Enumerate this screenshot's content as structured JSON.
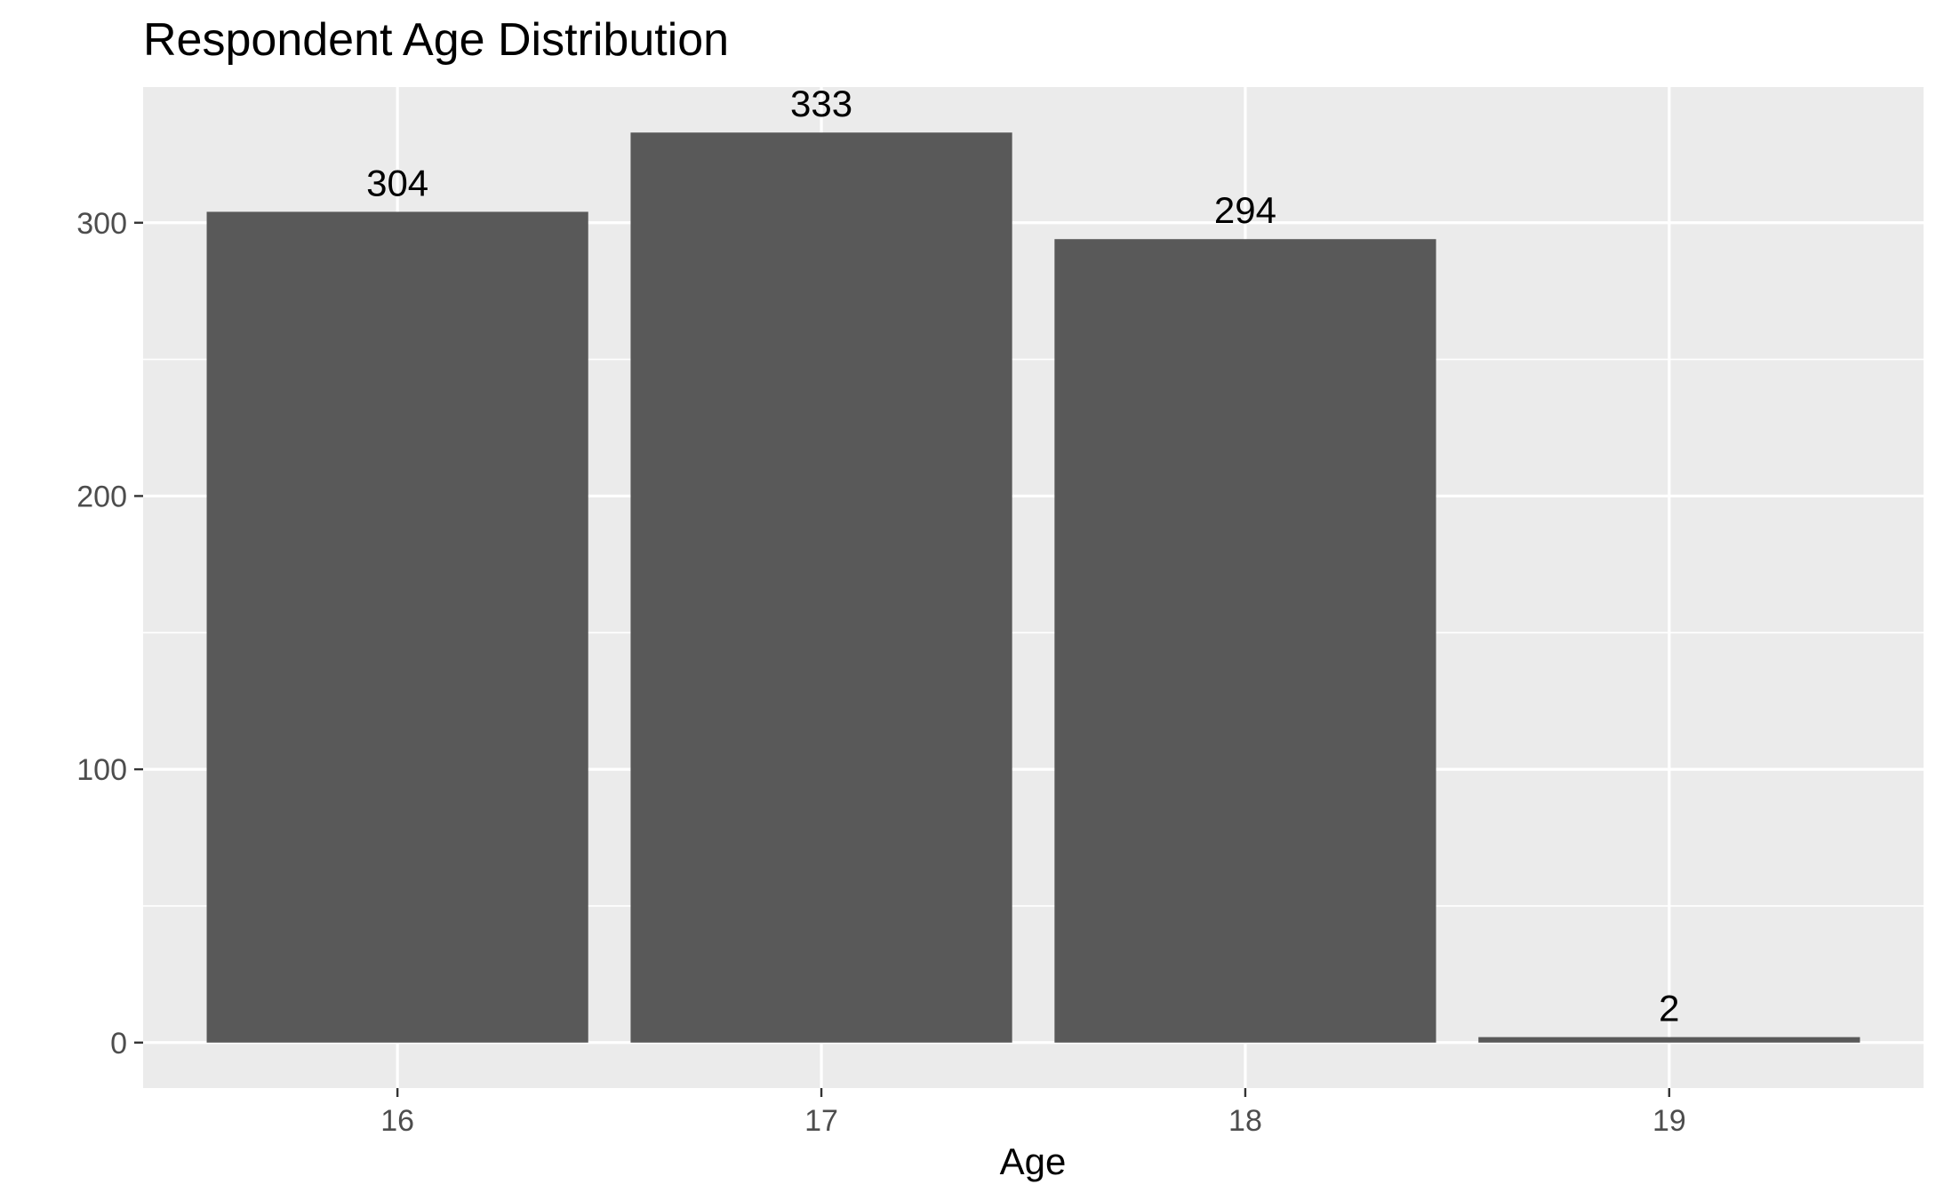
{
  "chart_data": {
    "type": "bar",
    "title": "Respondent Age Distribution",
    "xlabel": "Age",
    "ylabel": "",
    "categories": [
      "16",
      "17",
      "18",
      "19"
    ],
    "values": [
      304,
      333,
      294,
      2
    ],
    "data_labels": [
      "304",
      "333",
      "294",
      "2"
    ],
    "ylim": [
      -16.65,
      349.65
    ],
    "yticks": [
      0,
      100,
      200,
      300
    ],
    "ytick_labels": [
      "0",
      "100",
      "200",
      "300"
    ],
    "grid": true,
    "legend": "none",
    "colors": {
      "bar": "#595959",
      "panel": "#ebebeb",
      "grid": "#ffffff",
      "tick_text": "#4d4d4d",
      "tick_mark": "#333333"
    }
  }
}
